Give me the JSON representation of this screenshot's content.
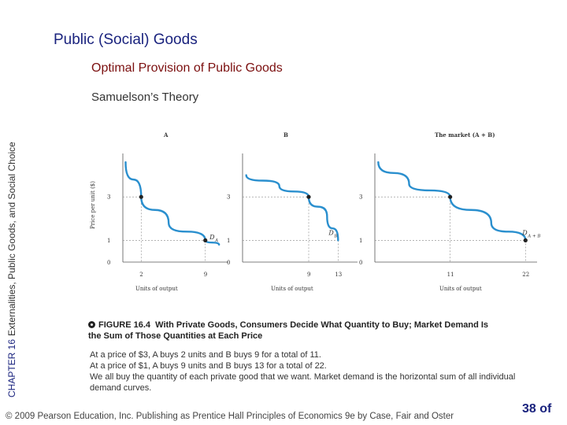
{
  "slide": {
    "title": "Public (Social) Goods",
    "subtitle": "Optimal Provision of Public Goods",
    "section": "Samuelson’s Theory",
    "side_chapter": "CHAPTER 16",
    "side_title": "Externalities, Public Goods, and Social Choice"
  },
  "figure": {
    "number": "FIGURE  16.4",
    "title": "With Private Goods, Consumers Decide What Quantity to Buy; Market Demand Is the Sum of Those Quantities at Each Price"
  },
  "body_lines": [
    "At a price of $3, A buys 2 units and B buys 9 for a total of 11.",
    "At a price of $1, A buys 9 units and B buys 13 for a total of 22.",
    "We all buy the quantity of each private good that we want. Market demand is the horizontal sum of all individual demand curves."
  ],
  "footer": {
    "copyright": "© 2009 Pearson Education, Inc. Publishing as Prentice Hall  Principles of Economics 9e by Case, Fair and Oster",
    "page": "38 of"
  },
  "colors": {
    "title": "#1a237e",
    "subtitle": "#7b0f0f",
    "curve": "#2a8fce"
  },
  "chart_data": [
    {
      "type": "line",
      "title": "A",
      "ylabel": "Price per unit ($)",
      "xlabel": "Units of output",
      "y_ticks": [
        "0",
        "1",
        "3"
      ],
      "x_ticks": [
        "2",
        "9"
      ],
      "curve_label": "D",
      "curve_label_sub": "A",
      "series": [
        {
          "x": [
            0.3,
            2,
            5,
            9,
            10.5
          ],
          "y": [
            4.6,
            3,
            1.8,
            1,
            0.8
          ]
        }
      ],
      "points": [
        {
          "x": 2,
          "y": 3
        },
        {
          "x": 9,
          "y": 1
        }
      ],
      "xlim": [
        0,
        11
      ],
      "ylim": [
        0,
        5
      ]
    },
    {
      "type": "line",
      "title": "B",
      "ylabel": "",
      "xlabel": "Units of output",
      "y_ticks": [
        "0",
        "1",
        "3"
      ],
      "x_ticks": [
        "9",
        "13"
      ],
      "curve_label": "D",
      "curve_label_sub": "B",
      "series": [
        {
          "x": [
            0.5,
            5,
            9,
            11.5,
            13
          ],
          "y": [
            4.0,
            3.5,
            3,
            2.1,
            1
          ]
        }
      ],
      "points": [
        {
          "x": 9,
          "y": 3
        }
      ],
      "xlim": [
        0,
        15
      ],
      "ylim": [
        0,
        5
      ]
    },
    {
      "type": "line",
      "title": "The market (A + B)",
      "ylabel": "",
      "xlabel": "Units of output",
      "y_ticks": [
        "0",
        "1",
        "3"
      ],
      "x_ticks": [
        "11",
        "22"
      ],
      "curve_label": "D",
      "curve_label_sub": "A + B",
      "series": [
        {
          "x": [
            0.5,
            5,
            11,
            17,
            22
          ],
          "y": [
            4.6,
            3.6,
            3,
            1.8,
            1
          ]
        }
      ],
      "points": [
        {
          "x": 11,
          "y": 3
        },
        {
          "x": 22,
          "y": 1
        }
      ],
      "xlim": [
        0,
        23
      ],
      "ylim": [
        0,
        5
      ]
    }
  ]
}
